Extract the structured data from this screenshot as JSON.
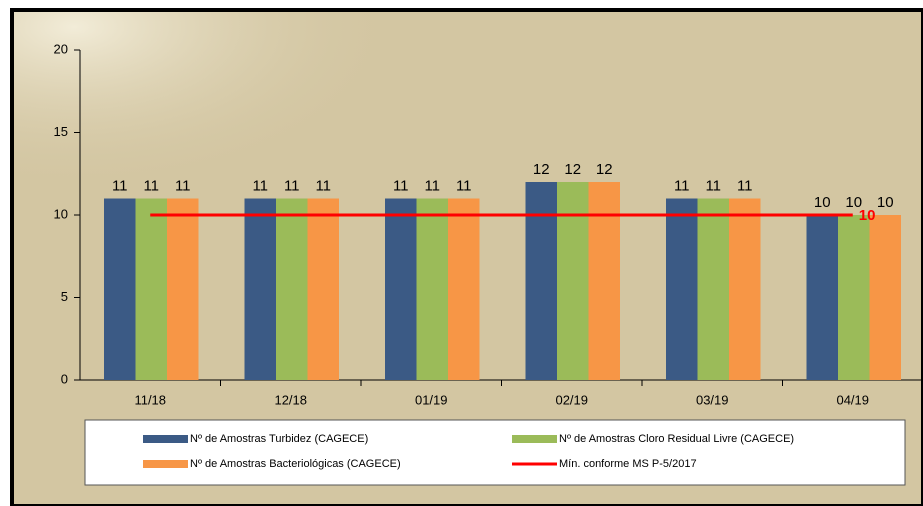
{
  "chart_data": {
    "type": "bar",
    "categories": [
      "11/18",
      "12/18",
      "01/19",
      "02/19",
      "03/19",
      "04/19"
    ],
    "series": [
      {
        "name": "Nº de Amostras Turbidez (CAGECE)",
        "color": "#3b5a85",
        "values": [
          11,
          11,
          11,
          12,
          11,
          10
        ]
      },
      {
        "name": "Nº de Amostras Cloro Residual Livre (CAGECE)",
        "color": "#9bbb59",
        "values": [
          11,
          11,
          11,
          12,
          11,
          10
        ]
      },
      {
        "name": "Nº de Amostras Bacteriológicas (CAGECE)",
        "color": "#f79646",
        "values": [
          11,
          11,
          11,
          12,
          11,
          10
        ]
      },
      {
        "name": "Mín. conforme MS P-5/2017",
        "color": "#ff0000",
        "type": "line",
        "values": [
          10,
          10,
          10,
          10,
          10,
          10
        ]
      }
    ],
    "ylim": [
      0,
      20
    ],
    "yticks": [
      0,
      5,
      10,
      15,
      20
    ]
  }
}
